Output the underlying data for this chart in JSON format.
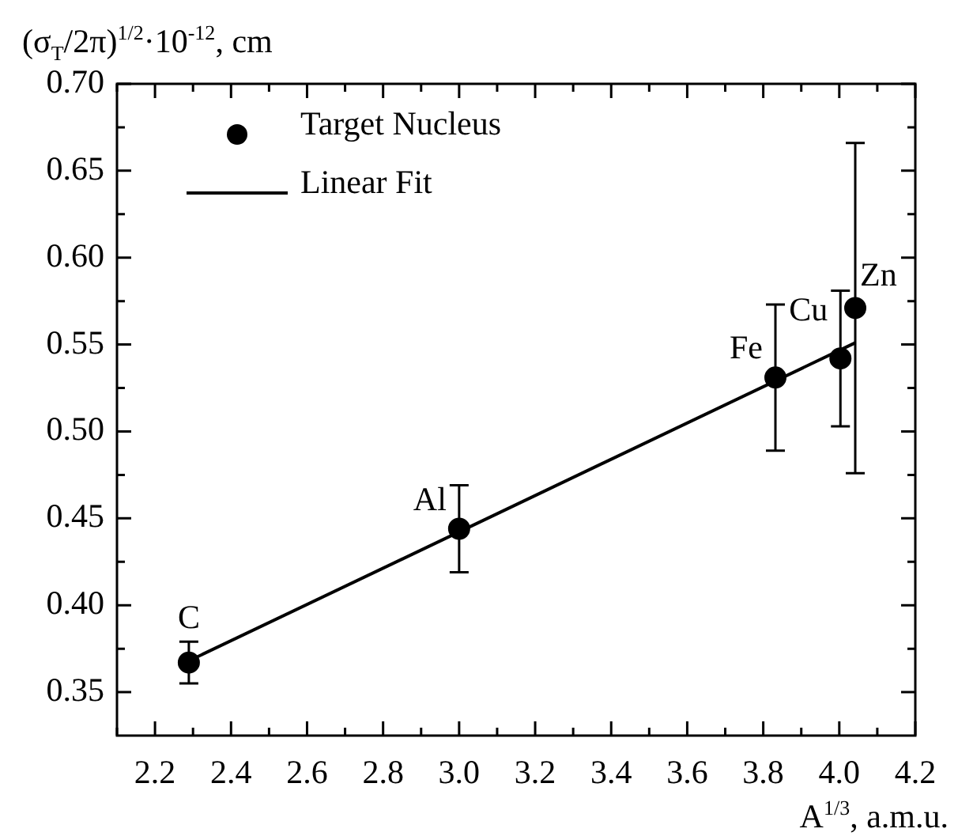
{
  "chart_data": {
    "type": "scatter",
    "xlabel": "A$^{1/3}$, a.m.u.",
    "ylabel": "(σ$_{T}$/2π)$^{1/2}$·10$^{-12}$, cm",
    "series": [
      {
        "name": "Target Nucleus",
        "color": "#000000",
        "marker": "circle",
        "x": [
          2.289,
          3.0,
          3.832,
          4.003,
          4.042
        ],
        "values": [
          0.367,
          0.444,
          0.531,
          0.542,
          0.571
        ],
        "errors": [
          0.012,
          0.025,
          0.042,
          0.039,
          0.095
        ]
      },
      {
        "name": "Linear Fit",
        "type": "line",
        "color": "#000000",
        "marker": "none",
        "line_style": "solid",
        "x": [
          2.289,
          4.042
        ],
        "values": [
          0.368,
          0.551
        ]
      }
    ],
    "xlim": [
      2.1,
      4.2
    ],
    "xticks": [
      {
        "value": 2.1,
        "label": null
      },
      2.2,
      {
        "value": 2.3,
        "label": null
      },
      2.4,
      {
        "value": 2.5,
        "label": null
      },
      2.6,
      {
        "value": 2.7,
        "label": null
      },
      2.8,
      {
        "value": 2.9,
        "label": null
      },
      {
        "value": 3,
        "label": "3.0"
      },
      {
        "value": 3.1,
        "label": null
      },
      3.2,
      {
        "value": 3.3,
        "label": null
      },
      3.4,
      {
        "value": 3.5,
        "label": null
      },
      3.6,
      {
        "value": 3.7,
        "label": null
      },
      3.8,
      {
        "value": 3.9,
        "label": null
      },
      {
        "value": 4,
        "label": "4.0"
      },
      {
        "value": 4.1,
        "label": null
      },
      4.2
    ],
    "ylim": [
      0.325,
      0.7
    ],
    "yticks": [
      0.35,
      {
        "value": 0.375,
        "label": null
      },
      {
        "value": 0.4,
        "label": "0.40"
      },
      {
        "value": 0.425,
        "label": null
      },
      0.45,
      {
        "value": 0.475,
        "label": null
      },
      {
        "value": 0.5,
        "label": "0.50"
      },
      {
        "value": 0.525,
        "label": null
      },
      0.55,
      {
        "value": 0.575,
        "label": null
      },
      {
        "value": 0.6,
        "label": "0.60"
      },
      {
        "value": 0.625,
        "label": null
      },
      0.65,
      {
        "value": 0.675,
        "label": null
      },
      {
        "value": 0.7,
        "label": "0.70"
      }
    ],
    "annotations": [
      {
        "text": "C",
        "x": 2.289,
        "y": 0.367
      },
      {
        "text": "Al",
        "x": 3.0,
        "y": 0.444
      },
      {
        "text": "Fe",
        "x": 3.832,
        "y": 0.531
      },
      {
        "text": "Cu",
        "x": 4.003,
        "y": 0.542
      },
      {
        "text": "Zn",
        "x": 4.042,
        "y": 0.571
      }
    ],
    "grid": false,
    "legend": "top left"
  }
}
